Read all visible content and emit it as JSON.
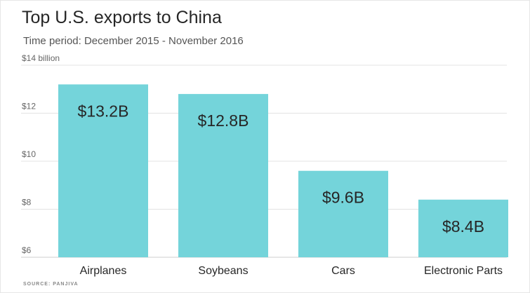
{
  "title": "Top U.S. exports to China",
  "subtitle": "Time period: December 2015 - November 2016",
  "source": "SOURCE: PANJIVA",
  "colors": {
    "bar": "#74d4da",
    "grid": "#e3e3e3",
    "axis": "#cfcfcf"
  },
  "chart_data": {
    "type": "bar",
    "categories": [
      "Airplanes",
      "Soybeans",
      "Cars",
      "Electronic Parts"
    ],
    "values": [
      13.2,
      12.8,
      9.6,
      8.4
    ],
    "data_labels": [
      "$13.2B",
      "$12.8B",
      "$9.6B",
      "$8.4B"
    ],
    "ylim": [
      6,
      14
    ],
    "yticks": [
      6,
      8,
      10,
      12,
      14
    ],
    "ytick_labels": [
      "$6",
      "$8",
      "$10",
      "$12",
      "$14 billion"
    ],
    "grid": true,
    "xlabel": "",
    "ylabel": ""
  }
}
